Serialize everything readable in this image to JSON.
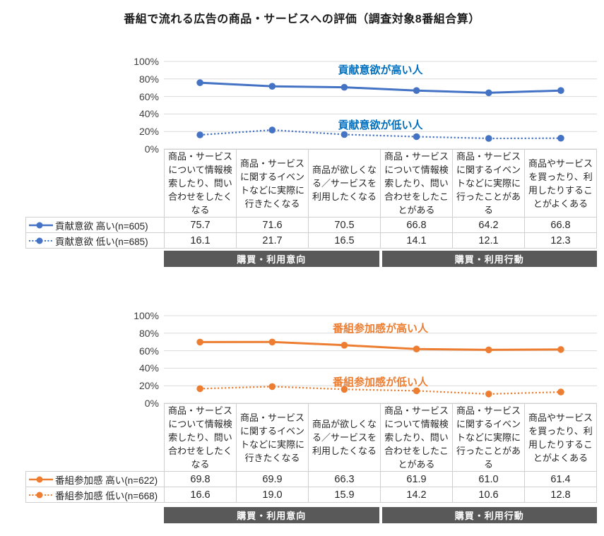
{
  "title": "番組で流れる広告の商品・サービスへの評価（調査対象8番組合算）",
  "chart_data": [
    {
      "type": "line",
      "color": "#4472C4",
      "annotation_color": "#0070C0",
      "ylim": [
        0,
        100
      ],
      "yticks": [
        "100%",
        "80%",
        "60%",
        "40%",
        "20%",
        "0%"
      ],
      "grid": true,
      "categories": [
        "商品・サービスについて情報検索したり、問い合わせをしたくなる",
        "商品・サービスに関するイベントなどに実際に行きたくなる",
        "商品が欲しくなる／サービスを利用したくなる",
        "商品・サービスについて情報検索したり、問い合わせをしたことがある",
        "商品・サービスに関するイベントなどに実際に行ったことがある",
        "商品やサービスを買ったり、利用したりすることがよくある"
      ],
      "series": [
        {
          "name": "貢献意欲 高い(n=605)",
          "annotation": "貢献意欲が高い人",
          "line": "solid",
          "values": [
            75.7,
            71.6,
            70.5,
            66.8,
            64.2,
            66.8
          ],
          "cells": [
            "75.7",
            "71.6",
            "70.5",
            "66.8",
            "64.2",
            "66.8"
          ]
        },
        {
          "name": "貢献意欲 低い(n=685)",
          "annotation": "貢献意欲が低い人",
          "line": "dotted",
          "values": [
            16.1,
            21.7,
            16.5,
            14.1,
            12.1,
            12.3
          ],
          "cells": [
            "16.1",
            "21.7",
            "16.5",
            "14.1",
            "12.1",
            "12.3"
          ]
        }
      ],
      "group_bands": [
        {
          "label": "購買・利用意向",
          "columns": [
            1,
            3
          ]
        },
        {
          "label": "購買・利用行動",
          "columns": [
            4,
            6
          ]
        }
      ]
    },
    {
      "type": "line",
      "color": "#ED7D31",
      "annotation_color": "#ED7D31",
      "ylim": [
        0,
        100
      ],
      "yticks": [
        "100%",
        "80%",
        "60%",
        "40%",
        "20%",
        "0%"
      ],
      "grid": true,
      "categories": [
        "商品・サービスについて情報検索したり、問い合わせをしたくなる",
        "商品・サービスに関するイベントなどに実際に行きたくなる",
        "商品が欲しくなる／サービスを利用したくなる",
        "商品・サービスについて情報検索したり、問い合わせをしたことがある",
        "商品・サービスに関するイベントなどに実際に行ったことがある",
        "商品やサービスを買ったり、利用したりすることがよくある"
      ],
      "series": [
        {
          "name": "番組参加感 高い(n=622)",
          "annotation": "番組参加感が高い人",
          "line": "solid",
          "values": [
            69.8,
            69.9,
            66.3,
            61.9,
            61.0,
            61.4
          ],
          "cells": [
            "69.8",
            "69.9",
            "66.3",
            "61.9",
            "61.0",
            "61.4"
          ]
        },
        {
          "name": "番組参加感 低い(n=668)",
          "annotation": "番組参加感が低い人",
          "line": "dotted",
          "values": [
            16.6,
            19.0,
            15.9,
            14.2,
            10.6,
            12.8
          ],
          "cells": [
            "16.6",
            "19.0",
            "15.9",
            "14.2",
            "10.6",
            "12.8"
          ]
        }
      ],
      "group_bands": [
        {
          "label": "購買・利用意向",
          "columns": [
            1,
            3
          ]
        },
        {
          "label": "購買・利用行動",
          "columns": [
            4,
            6
          ]
        }
      ]
    }
  ]
}
